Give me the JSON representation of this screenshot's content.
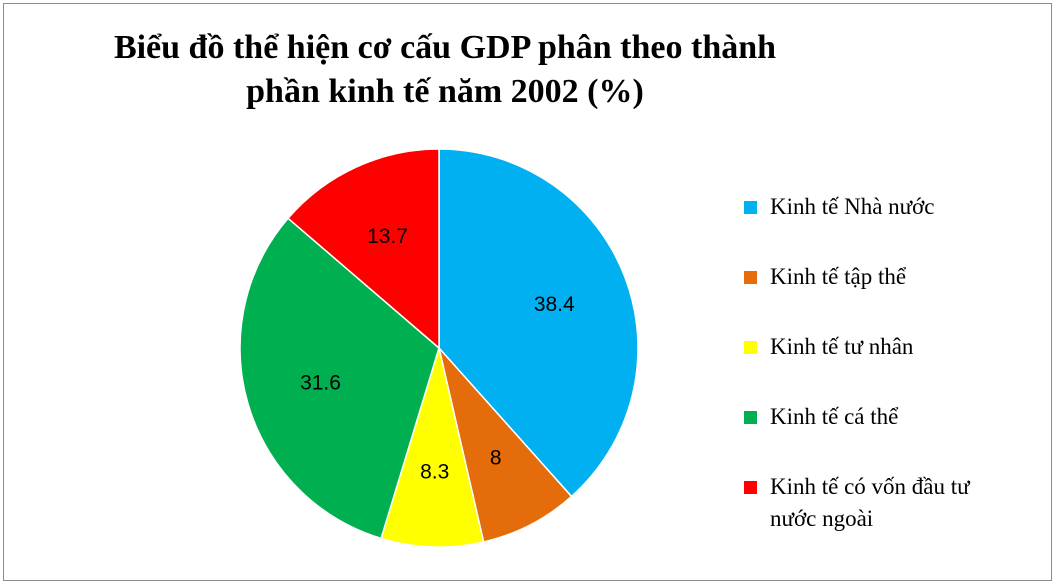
{
  "chart_data": {
    "type": "pie",
    "title": "Biểu đồ thể hiện cơ cấu GDP phân theo thành phần kinh tế năm 2002 (%)",
    "title_lines": [
      "Biểu đồ thể hiện cơ cấu GDP phân theo thành",
      "phần kinh tế năm 2002 (%)"
    ],
    "categories": [
      "Kinh tế Nhà nước",
      "Kinh tế tập thể",
      "Kinh tế tư nhân",
      "Kinh tế cá thể",
      "Kinh tế có vốn đầu tư nước ngoài"
    ],
    "legend_lines": [
      [
        "Kinh tế Nhà nước"
      ],
      [
        "Kinh tế tập thể"
      ],
      [
        "Kinh tế tư nhân"
      ],
      [
        "Kinh tế cá thể"
      ],
      [
        "Kinh tế có vốn đầu tư",
        "nước ngoài"
      ]
    ],
    "values": [
      38.4,
      8,
      8.3,
      31.6,
      13.7
    ],
    "data_labels": [
      "38.4",
      "8",
      "8.3",
      "31.6",
      "13.7"
    ],
    "colors": [
      "#00b0f0",
      "#e46c0a",
      "#ffff00",
      "#00b050",
      "#ff0000"
    ],
    "legend_placement": "right",
    "start_angle_deg": 0,
    "direction": "clockwise"
  }
}
